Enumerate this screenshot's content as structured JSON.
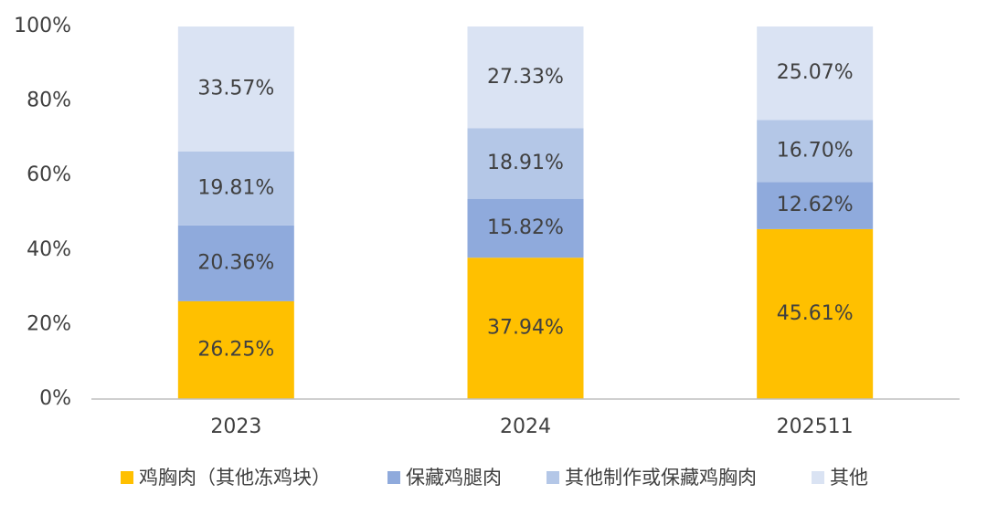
{
  "chart_data": {
    "type": "stacked-bar",
    "categories": [
      "2023",
      "2024",
      "202511"
    ],
    "series": [
      {
        "name": "鸡胸肉（其他冻鸡块）",
        "color": "#FFC000",
        "values": [
          26.25,
          37.94,
          45.61
        ],
        "value_labels": [
          "26.25%",
          "37.94%",
          "45.61%"
        ]
      },
      {
        "name": "保藏鸡腿肉",
        "color": "#8FAADC",
        "values": [
          20.36,
          15.82,
          12.62
        ],
        "value_labels": [
          "20.36%",
          "15.82%",
          "12.62%"
        ]
      },
      {
        "name": "其他制作或保藏鸡胸肉",
        "color": "#B4C7E7",
        "values": [
          19.81,
          18.91,
          16.7
        ],
        "value_labels": [
          "19.81%",
          "18.91%",
          "16.70%"
        ]
      },
      {
        "name": "其他",
        "color": "#DAE3F3",
        "values": [
          33.57,
          27.33,
          25.07
        ],
        "value_labels": [
          "33.57%",
          "27.33%",
          "25.07%"
        ]
      }
    ],
    "ylim": [
      0,
      100
    ],
    "yticks": [
      {
        "value": 0,
        "label": "0%"
      },
      {
        "value": 20,
        "label": "20%"
      },
      {
        "value": 40,
        "label": "40%"
      },
      {
        "value": 60,
        "label": "60%"
      },
      {
        "value": 80,
        "label": "80%"
      },
      {
        "value": 100,
        "label": "100%"
      }
    ],
    "grid": false,
    "legend": "bottom"
  }
}
